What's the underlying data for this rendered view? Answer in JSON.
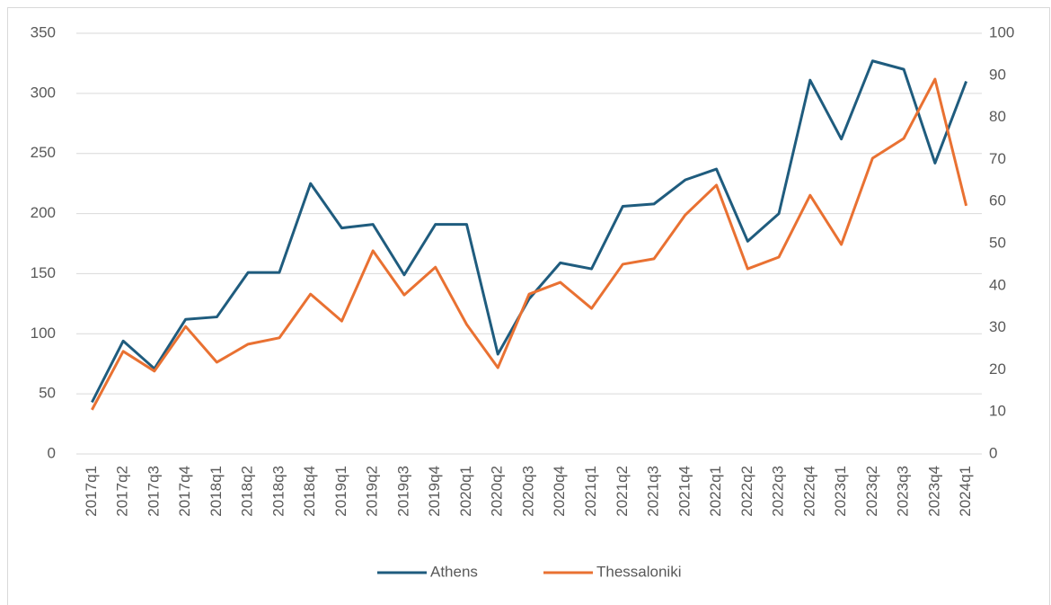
{
  "chart_data": {
    "type": "line",
    "categories": [
      "2017q1",
      "2017q2",
      "2017q3",
      "2017q4",
      "2018q1",
      "2018q2",
      "2018q3",
      "2018q4",
      "2019q1",
      "2019q2",
      "2019q3",
      "2019q4",
      "2020q1",
      "2020q2",
      "2020q3",
      "2020q4",
      "2021q1",
      "2021q2",
      "2021q3",
      "2021q4",
      "2022q1",
      "2022q2",
      "2022q3",
      "2022q4",
      "2023q1",
      "2023q2",
      "2023q3",
      "2023q4",
      "2024q1"
    ],
    "series": [
      {
        "name": "Athens",
        "color": "#1f5c7e",
        "values": [
          43,
          94,
          71,
          112,
          114,
          151,
          151,
          225,
          188,
          191,
          149,
          191,
          191,
          83,
          129,
          159,
          154,
          206,
          208,
          228,
          237,
          177,
          200,
          311,
          262,
          327,
          320,
          242,
          310
        ]
      },
      {
        "name": "Thessaloniki",
        "color": "#e97132",
        "axis": "y2",
        "values": [
          10.5,
          24.4,
          19.7,
          30.3,
          21.8,
          26.1,
          27.6,
          38.0,
          31.6,
          48.3,
          37.8,
          44.4,
          30.8,
          20.5,
          38.0,
          40.8,
          34.6,
          45.1,
          46.4,
          56.8,
          63.9,
          44.0,
          46.8,
          61.5,
          49.8,
          70.3,
          75.0,
          89.1,
          59.0
        ]
      }
    ],
    "ylim": [
      0,
      350
    ],
    "yticks": [
      0,
      50,
      100,
      150,
      200,
      250,
      300,
      350
    ],
    "y2lim": [
      0,
      100
    ],
    "y2ticks": [
      0,
      10,
      20,
      30,
      40,
      50,
      60,
      70,
      80,
      90,
      100
    ],
    "grid": true,
    "legend": "bottom"
  }
}
